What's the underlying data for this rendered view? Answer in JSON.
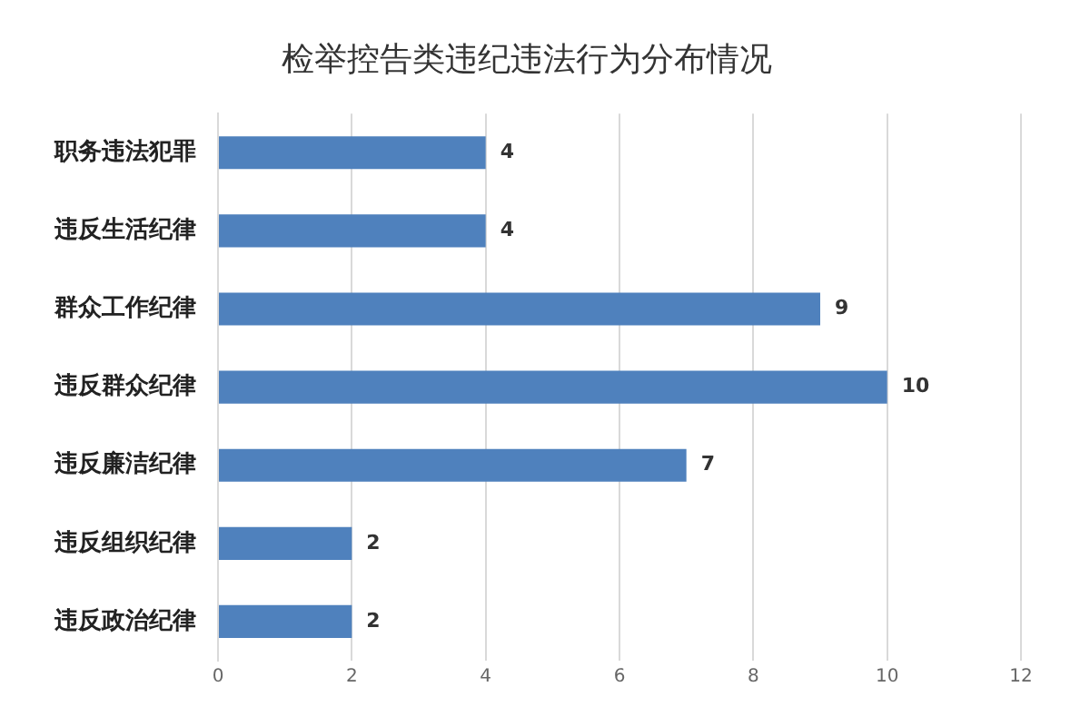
{
  "chart_data": {
    "type": "bar",
    "orientation": "horizontal",
    "title": "检举控告类违纪违法行为分布情况",
    "categories": [
      "职务违法犯罪",
      "违反生活纪律",
      "群众工作纪律",
      "违反群众纪律",
      "违反廉洁纪律",
      "违反组织纪律",
      "违反政治纪律"
    ],
    "values": [
      4,
      4,
      9,
      10,
      7,
      2,
      2
    ],
    "color": "#4f81bd",
    "xlim": [
      0,
      12
    ],
    "xticks": [
      0,
      2,
      4,
      6,
      8,
      10,
      12
    ],
    "grid": "x",
    "legend": false,
    "data_labels": true
  }
}
